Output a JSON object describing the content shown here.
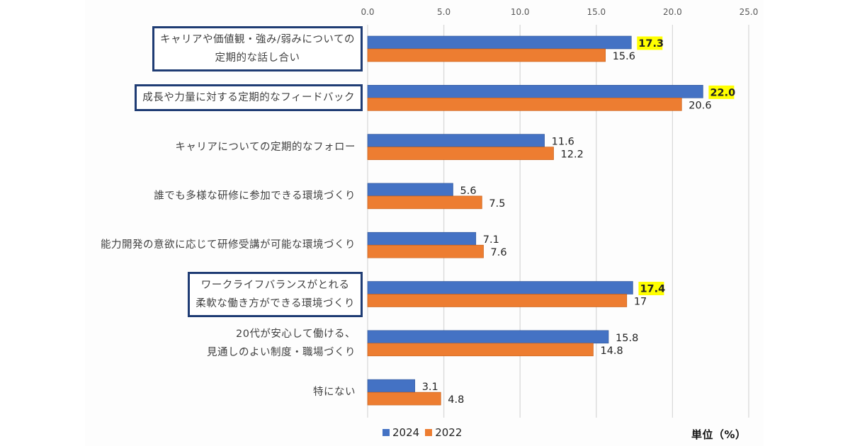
{
  "chart_data": {
    "type": "bar",
    "orientation": "horizontal",
    "categories": [
      "キャリアや価値観・強み/弱みについての\n定期的な話し合い",
      "成長や力量に対する定期的なフィードバック",
      "キャリアについての定期的なフォロー",
      "誰でも多様な研修に参加できる環境づくり",
      "能力開発の意欲に応じて研修受講が可能な環境づくり",
      "ワークライフバランスがとれる\n柔軟な働き方ができる環境づくり",
      "20代が安心して働ける、\n見通しのよい制度・職場づくり",
      "特にない"
    ],
    "boxed": [
      true,
      true,
      false,
      false,
      false,
      true,
      false,
      false
    ],
    "series": [
      {
        "name": "2024",
        "color": "#4472c4",
        "values": [
          17.3,
          22.0,
          11.6,
          5.6,
          7.1,
          17.4,
          15.8,
          3.1
        ],
        "labels": [
          "17.3",
          "22.0",
          "11.6",
          "5.6",
          "7.1",
          "17.4",
          "15.8",
          "3.1"
        ],
        "highlighted": [
          true,
          true,
          false,
          false,
          false,
          true,
          false,
          false
        ]
      },
      {
        "name": "2022",
        "color": "#ed7d31",
        "values": [
          15.6,
          20.6,
          12.2,
          7.5,
          7.6,
          17,
          14.8,
          4.8
        ],
        "labels": [
          "15.6",
          "20.6",
          "12.2",
          "7.5",
          "7.6",
          "17",
          "14.8",
          "4.8"
        ]
      }
    ],
    "xlim": [
      0,
      25
    ],
    "xticks": [
      "0.0",
      "5.0",
      "10.0",
      "15.0",
      "20.0",
      "25.0"
    ],
    "xtick_values": [
      0,
      5,
      10,
      15,
      20,
      25
    ],
    "grid": true,
    "legend": "bottom",
    "unit_label": "単位（%）",
    "highlight_color": "#ffff00",
    "box_color": "#1f3c74"
  }
}
